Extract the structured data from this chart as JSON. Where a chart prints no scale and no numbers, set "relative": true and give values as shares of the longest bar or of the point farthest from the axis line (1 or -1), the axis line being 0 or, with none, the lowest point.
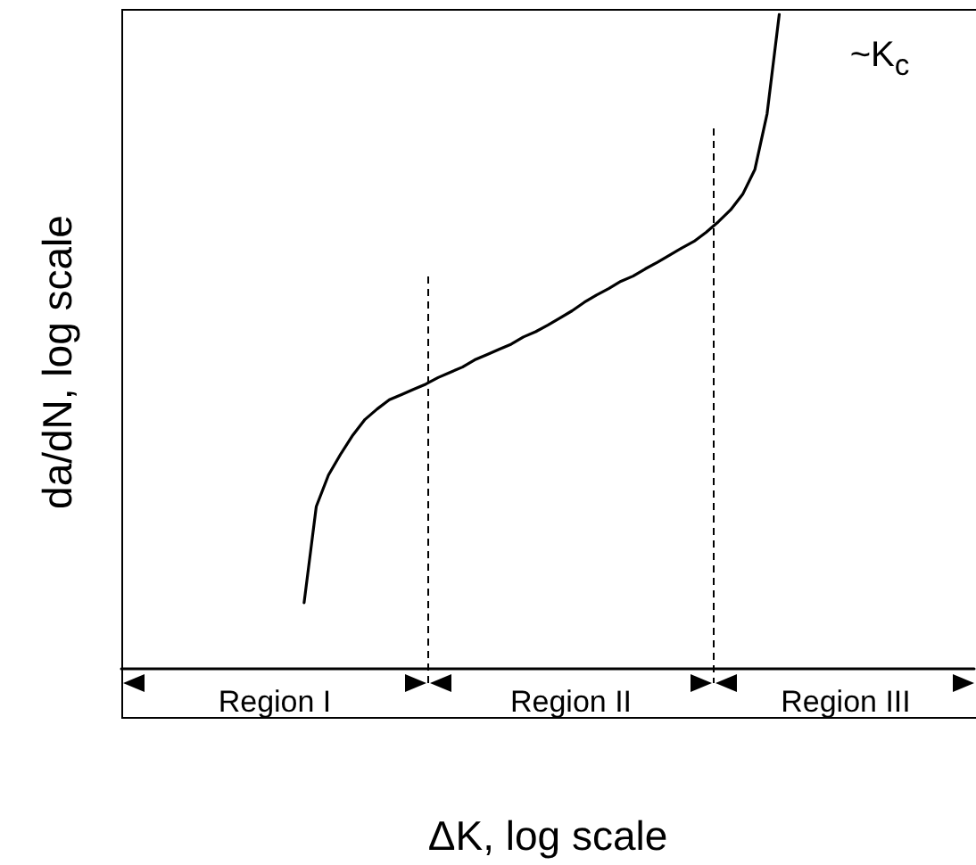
{
  "chart_data": {
    "type": "line",
    "relative": true,
    "xlabel": "ΔK, log scale",
    "ylabel": "da/dN, log scale",
    "categories": [
      null,
      null,
      null,
      null,
      null,
      null,
      null,
      null,
      null,
      null,
      null,
      null,
      null,
      null,
      null,
      null,
      null,
      null,
      null,
      null,
      null,
      null,
      null,
      null,
      null,
      null,
      null,
      null,
      null,
      null,
      null,
      null,
      null,
      null,
      null,
      null,
      null,
      null,
      null,
      null,
      null,
      null,
      null,
      null,
      null,
      null,
      null,
      null,
      null,
      null,
      null,
      null,
      null,
      null,
      null,
      null,
      null,
      null,
      null,
      null,
      null,
      null,
      null,
      null,
      null,
      null,
      null,
      null,
      null,
      null,
      null
    ],
    "series": [
      {
        "color": "#000000",
        "values": [
          null,
          null,
          null,
          null,
          null,
          null,
          null,
          null,
          null,
          null,
          null,
          null,
          null,
          null,
          null,
          0.101,
          0.248,
          0.296,
          0.328,
          0.357,
          0.381,
          0.397,
          0.411,
          0.419,
          0.427,
          0.435,
          0.445,
          0.453,
          0.461,
          0.472,
          0.48,
          0.488,
          0.496,
          0.507,
          0.515,
          0.525,
          0.536,
          0.547,
          0.56,
          0.571,
          0.581,
          0.592,
          0.6,
          0.611,
          0.621,
          0.632,
          0.643,
          0.653,
          0.667,
          0.683,
          0.701,
          0.725,
          0.763,
          0.848,
          1.0,
          null,
          null,
          null,
          null,
          null,
          null,
          null,
          null,
          null,
          null,
          null,
          null,
          null,
          null,
          null,
          null
        ]
      }
    ],
    "annotations": [
      "Region I",
      "Region II",
      "Region III",
      "~K$_{c}$"
    ],
    "grid": false,
    "marker": "none",
    "line_style": "solid"
  }
}
